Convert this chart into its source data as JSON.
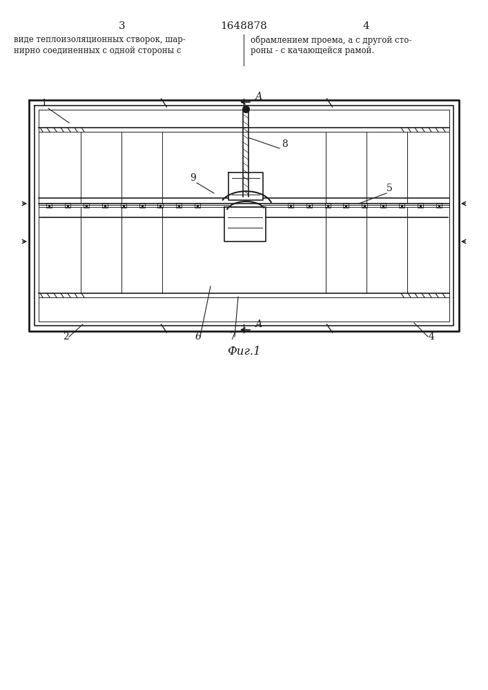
{
  "page_number_left": "3",
  "page_number_center": "1648878",
  "page_number_right": "4",
  "text_left": [
    "виде теплоизоляционных створок, шар-",
    "нирно соединенных с одной стороны с"
  ],
  "text_right": [
    "обрамлением проема, а с другой сто-",
    "роны - с качающейся рамой."
  ],
  "fig_label": "Фиг.1",
  "bg_color": "#ffffff",
  "drawing_color": "#1a1a1a"
}
